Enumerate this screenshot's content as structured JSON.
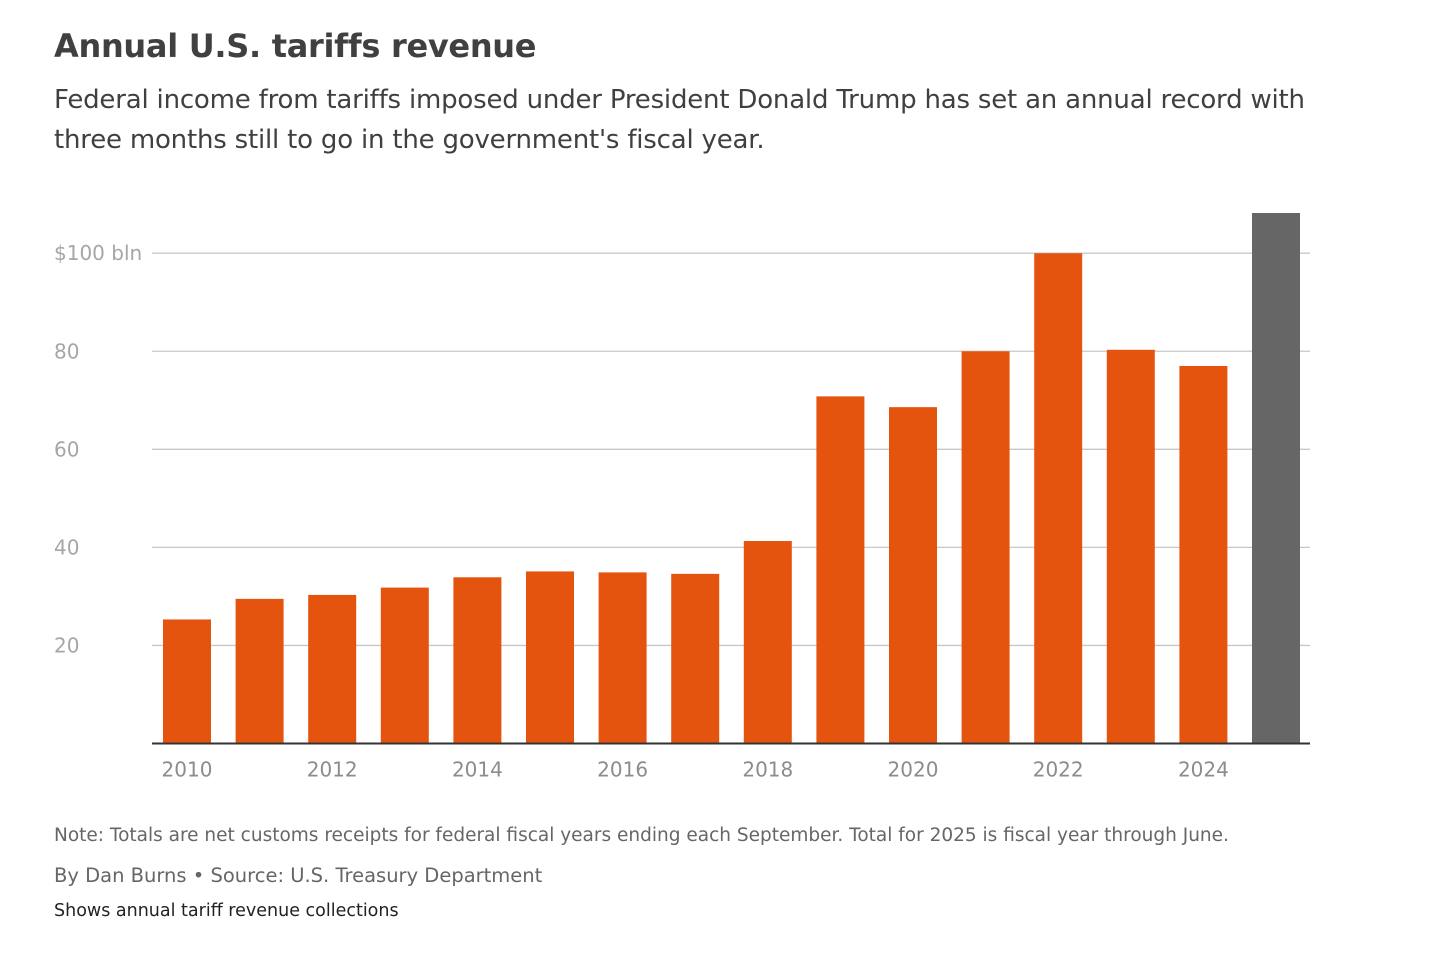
{
  "chart_data": {
    "type": "bar",
    "title": "Annual U.S. tariffs revenue",
    "subtitle": "Federal income from tariffs imposed under President Donald Trump has set an annual record with three months still to go in the government's fiscal year.",
    "xlabel": "",
    "ylabel": "",
    "categories": [
      "2010",
      "2011",
      "2012",
      "2013",
      "2014",
      "2015",
      "2016",
      "2017",
      "2018",
      "2019",
      "2020",
      "2021",
      "2022",
      "2023",
      "2024",
      "2025"
    ],
    "values": [
      25.3,
      29.5,
      30.3,
      31.8,
      33.9,
      35.1,
      34.9,
      34.6,
      41.3,
      70.8,
      68.6,
      80.0,
      100.0,
      80.3,
      77.0,
      108.2
    ],
    "x_tick_labels": [
      "2010",
      "",
      "2012",
      "",
      "2014",
      "",
      "2016",
      "",
      "2018",
      "",
      "2020",
      "",
      "2022",
      "",
      "2024",
      ""
    ],
    "y_ticks": [
      20,
      40,
      60,
      80,
      100
    ],
    "y_tick_labels": [
      "20",
      "40",
      "60",
      "80",
      "$100 bln"
    ],
    "ylim": [
      0,
      108.2
    ],
    "grid": true,
    "legend": "none",
    "colors": {
      "default_bar": "#e5540f",
      "highlight_bar": "#666666",
      "gridline": "#c8c8c8",
      "axis": "#333333"
    },
    "highlight_index": 15,
    "note": "Note: Totals are net customs receipts for federal fiscal years ending each September. Total for 2025 is fiscal year through June.",
    "byline": "By Dan Burns • Source: U.S. Treasury Department",
    "description": "Shows annual tariff revenue collections"
  }
}
